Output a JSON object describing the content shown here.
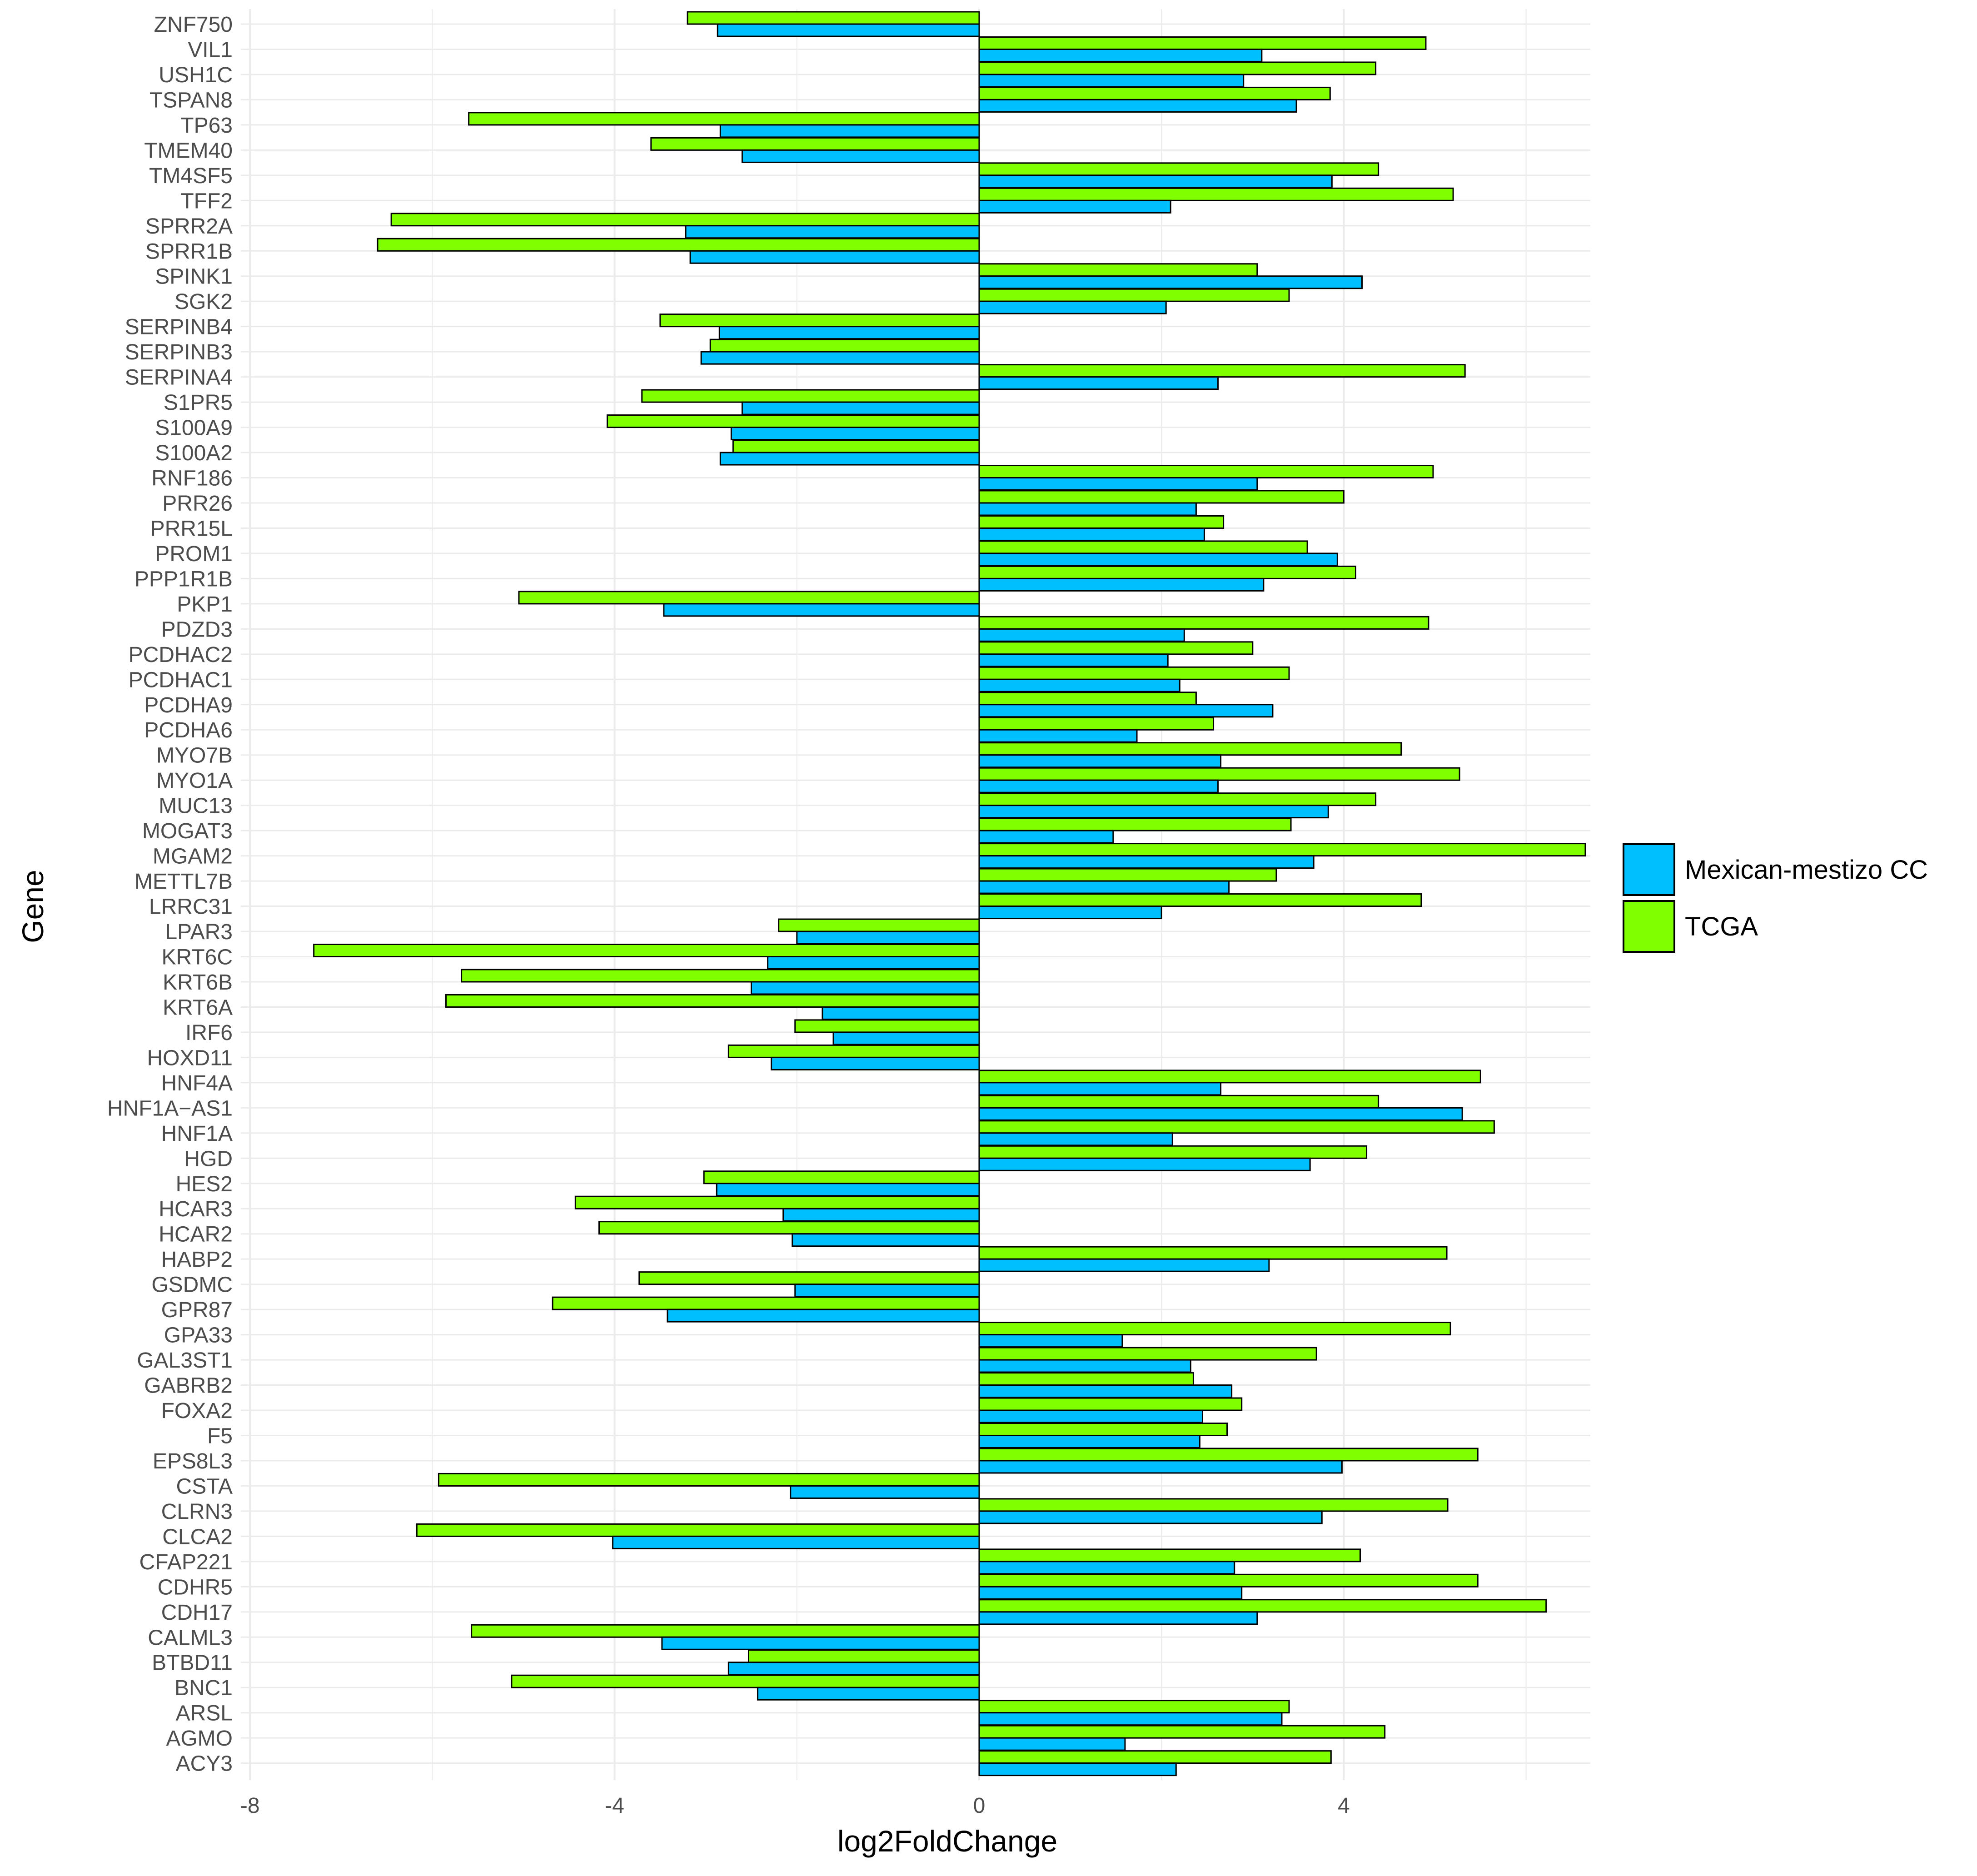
{
  "chart_data": {
    "type": "bar",
    "orientation": "horizontal",
    "xlabel": "log2FoldChange",
    "ylabel": "Gene",
    "xlim": [
      -8,
      6.7
    ],
    "xticks": [
      -8,
      -4,
      0,
      4
    ],
    "xtick_labels": [
      "-8",
      "-4",
      "0",
      "4"
    ],
    "grid": true,
    "legend_position": "right",
    "colors": {
      "Mexican-mestizo CC": "#00bfff",
      "TCGA": "#80ff00"
    },
    "categories": [
      "ZNF750",
      "VIL1",
      "USH1C",
      "TSPAN8",
      "TP63",
      "TMEM40",
      "TM4SF5",
      "TFF2",
      "SPRR2A",
      "SPRR1B",
      "SPINK1",
      "SGK2",
      "SERPINB4",
      "SERPINB3",
      "SERPINA4",
      "S1PR5",
      "S100A9",
      "S100A2",
      "RNF186",
      "PRR26",
      "PRR15L",
      "PROM1",
      "PPP1R1B",
      "PKP1",
      "PDZD3",
      "PCDHAC2",
      "PCDHAC1",
      "PCDHA9",
      "PCDHA6",
      "MYO7B",
      "MYO1A",
      "MUC13",
      "MOGAT3",
      "MGAM2",
      "METTL7B",
      "LRRC31",
      "LPAR3",
      "KRT6C",
      "KRT6B",
      "KRT6A",
      "IRF6",
      "HOXD11",
      "HNF4A",
      "HNF1A−AS1",
      "HNF1A",
      "HGD",
      "HES2",
      "HCAR3",
      "HCAR2",
      "HABP2",
      "GSDMC",
      "GPR87",
      "GPA33",
      "GAL3ST1",
      "GABRB2",
      "FOXA2",
      "F5",
      "EPS8L3",
      "CSTA",
      "CLRN3",
      "CLCA2",
      "CFAP221",
      "CDHR5",
      "CDH17",
      "CALML3",
      "BTBD11",
      "BNC1",
      "ARSL",
      "AGMO",
      "ACY3"
    ],
    "series": [
      {
        "name": "TCGA",
        "values": [
          -3.2,
          4.9,
          4.35,
          3.85,
          -5.6,
          -3.6,
          4.38,
          5.2,
          -6.45,
          -6.6,
          3.05,
          3.4,
          -3.5,
          -2.95,
          5.33,
          -3.7,
          -4.08,
          -2.7,
          4.98,
          4.0,
          2.68,
          3.6,
          4.13,
          -5.05,
          4.93,
          3.0,
          3.4,
          2.38,
          2.57,
          4.63,
          5.27,
          4.35,
          3.42,
          6.65,
          3.26,
          4.85,
          -2.2,
          -7.3,
          -5.68,
          -5.85,
          -2.02,
          -2.75,
          5.5,
          4.38,
          5.65,
          4.25,
          -3.02,
          -4.43,
          -4.17,
          5.13,
          -3.73,
          -4.68,
          5.17,
          3.7,
          2.35,
          2.88,
          2.72,
          5.47,
          -5.93,
          5.14,
          -6.17,
          4.18,
          5.47,
          6.22,
          -5.57,
          -2.53,
          -5.13,
          3.4,
          4.45,
          3.86
        ]
      },
      {
        "name": "Mexican-mestizo CC",
        "values": [
          -2.87,
          3.1,
          2.9,
          3.48,
          -2.84,
          -2.6,
          3.87,
          2.1,
          -3.22,
          -3.17,
          4.2,
          2.05,
          -2.85,
          -3.05,
          2.62,
          -2.6,
          -2.72,
          -2.84,
          3.05,
          2.38,
          2.47,
          3.93,
          3.12,
          -3.46,
          2.25,
          2.07,
          2.2,
          3.22,
          1.73,
          2.65,
          2.62,
          3.83,
          1.47,
          3.67,
          2.74,
          2.0,
          -2.0,
          -2.32,
          -2.5,
          -1.72,
          -1.6,
          -2.28,
          2.65,
          5.3,
          2.12,
          3.63,
          -2.88,
          -2.15,
          -2.05,
          3.18,
          -2.02,
          -3.42,
          1.57,
          2.32,
          2.77,
          2.45,
          2.42,
          3.98,
          -2.07,
          3.76,
          -4.02,
          2.8,
          2.88,
          3.05,
          -3.48,
          -2.75,
          -2.43,
          3.32,
          1.6,
          2.16
        ]
      }
    ]
  }
}
